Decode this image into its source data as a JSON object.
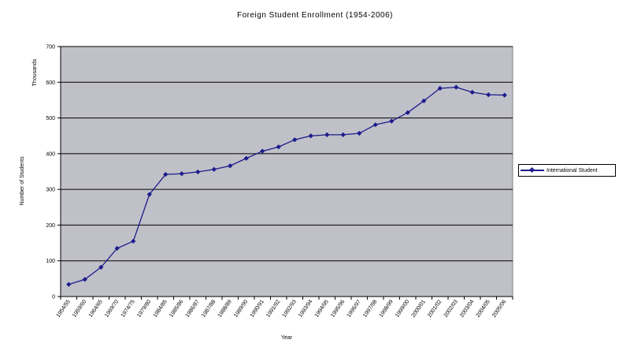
{
  "chart_data": {
    "type": "line",
    "title": "Foreign Student Enrollment (1954-2006)",
    "xlabel": "Year",
    "ylabel": "Number of Students",
    "yunit": "Thousands",
    "ylim": [
      0,
      700
    ],
    "yticks": [
      0,
      100,
      200,
      300,
      400,
      500,
      600,
      700
    ],
    "grid": true,
    "legend_position": "right",
    "line_color": "#1c1c8c",
    "plot_background": "#c0c0c8",
    "categories": [
      "1954/55",
      "1959/60",
      "1964/65",
      "1969/70",
      "1974/75",
      "1979/80",
      "1984/85",
      "1985/86",
      "1986/87",
      "1987/88",
      "1988/89",
      "1989/90",
      "1990/91",
      "1991/92",
      "1992/93",
      "1993/94",
      "1994/95",
      "1995/96",
      "1996/97",
      "1997/98",
      "1998/99",
      "1999/00",
      "2000/01",
      "2001/02",
      "2002/03",
      "2003/04",
      "2004/05",
      "2005/06"
    ],
    "series": [
      {
        "name": "International Student",
        "values": [
          34,
          48,
          82,
          135,
          155,
          286,
          342,
          344,
          349,
          356,
          366,
          387,
          407,
          419,
          439,
          450,
          453,
          453,
          457,
          481,
          491,
          515,
          548,
          583,
          586,
          572,
          565,
          564
        ]
      }
    ]
  }
}
